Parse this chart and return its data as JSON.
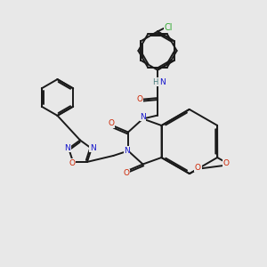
{
  "bg_color": "#e8e8e8",
  "bond_color": "#1a1a1a",
  "bond_width": 1.4,
  "atom_colors": {
    "N": "#1515cc",
    "O": "#cc2200",
    "Cl": "#33aa33",
    "H": "#447777",
    "C": "#1a1a1a"
  },
  "font_size": 6.5,
  "figsize": [
    3.0,
    3.0
  ],
  "dpi": 100
}
